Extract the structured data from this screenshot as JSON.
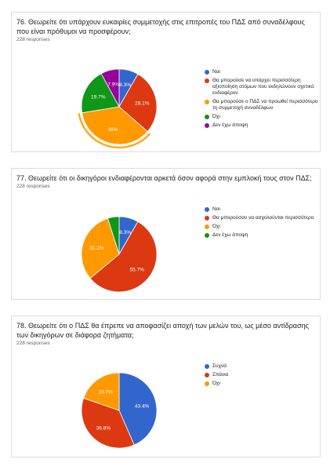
{
  "chart_data": [
    {
      "type": "pie",
      "title": "76. Θεωρείτε ότι υπάρχουν ευκαιρίες συμμετοχής στις επιτροπές του ΠΔΣ από συναδέλφους που είναι πρόθυμοι να προσφέρουν;",
      "responses": "228 responses",
      "categories": [
        "Ναι",
        "Θα μπορούσε να υπάρχει περισσότερη αξιοποίηση ατόμων που εκδηλώνουν σχετικό ενδιαφέρον",
        "Θα μπορούσε ο ΠΔΣ να προωθεί περισσότερο τη συμμετοχή συναδέλφων",
        "Όχι",
        "Δεν έχω άποψη"
      ],
      "values": [
        8.3,
        28.1,
        36.0,
        19.7,
        7.9
      ],
      "labels": [
        "8.3%",
        "28.1%",
        "36%",
        "19.7%",
        "7.9%"
      ],
      "colors": [
        "#3366cc",
        "#dc3912",
        "#ff9900",
        "#109618",
        "#990099"
      ],
      "highlight": 2
    },
    {
      "type": "pie",
      "title": "77. Θεωρείτε ότι οι δικηγόροι ενδιαφέρονται αρκετά όσον αφορά στην εμπλοκή τους στον ΠΔΣ;",
      "responses": "228 responses",
      "categories": [
        "Ναι",
        "Θα μπορούσαν να ασχολούνται περισσότερο",
        "Όχι",
        "Δεν έχω άποψη"
      ],
      "values": [
        8.3,
        55.7,
        31.1,
        4.9
      ],
      "labels": [
        "8.3%",
        "55.7%",
        "31.1%",
        ""
      ],
      "colors": [
        "#3366cc",
        "#dc3912",
        "#ff9900",
        "#109618"
      ],
      "highlight": -1
    },
    {
      "type": "pie",
      "title": "78. Θεωρείτε ότι ο ΠΔΣ θα έπρεπε να αποφασίζει αποχή των μελών του, ως μέσο αντίδρασης των δικηγόρων σε διάφορα ζητήματα;",
      "responses": "228 responses",
      "categories": [
        "Συχνά",
        "Σπάνια",
        "Όχι"
      ],
      "values": [
        43.4,
        36.8,
        19.7
      ],
      "labels": [
        "43.4%",
        "36.8%",
        "19.7%"
      ],
      "colors": [
        "#3366cc",
        "#dc3912",
        "#ff9900"
      ],
      "highlight": -1
    }
  ]
}
